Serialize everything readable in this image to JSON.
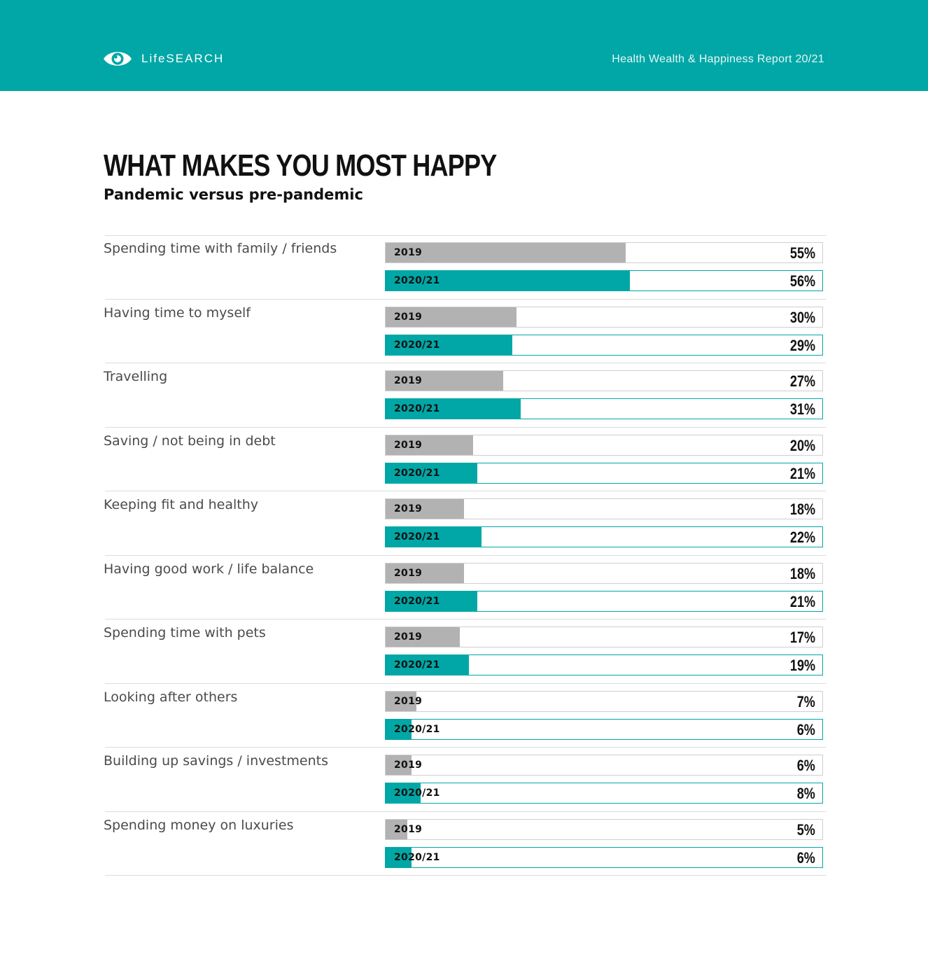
{
  "header": {
    "logo_text": "LifeSEARCH",
    "logo_icon": "eye-icon",
    "report_title": "Health Wealth & Happiness Report 20/21",
    "background_color": "#00a7a6"
  },
  "colors": {
    "series_2019": "#b2b2b2",
    "series_2020_21": "#00a7a6"
  },
  "chart_data": {
    "type": "bar",
    "orientation": "horizontal",
    "title": "WHAT MAKES YOU MOST HAPPY",
    "subtitle": "Pandemic versus pre-pandemic",
    "categories": [
      "Spending time with family / friends",
      "Having time to myself",
      "Travelling",
      "Saving / not being in debt",
      "Keeping fit and healthy",
      "Having good work / life balance",
      "Spending time with pets",
      "Looking after others",
      "Building up savings / investments",
      "Spending money on luxuries"
    ],
    "series": [
      {
        "name": "2019",
        "values": [
          55,
          30,
          27,
          20,
          18,
          18,
          17,
          7,
          6,
          5
        ],
        "labels": [
          "55%",
          "30%",
          "27%",
          "20%",
          "18%",
          "18%",
          "17%",
          "7%",
          "6%",
          "5%"
        ]
      },
      {
        "name": "2020/21",
        "values": [
          56,
          29,
          31,
          21,
          22,
          21,
          19,
          6,
          8,
          6
        ],
        "labels": [
          "56%",
          "29%",
          "31%",
          "21%",
          "22%",
          "21%",
          "19%",
          "6%",
          "8%",
          "6%"
        ]
      }
    ],
    "xlim": [
      0,
      100
    ],
    "unit": "%",
    "grid": false
  }
}
